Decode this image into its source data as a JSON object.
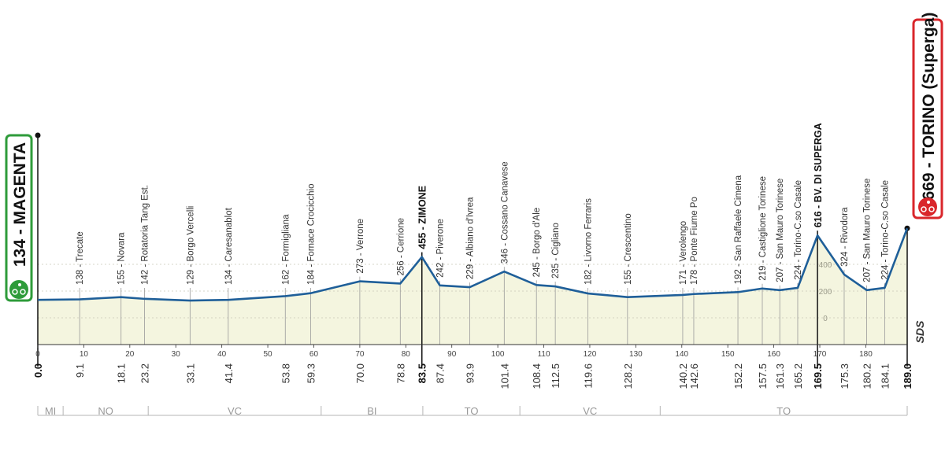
{
  "chart_data": {
    "type": "profile",
    "x": [
      0.0,
      9.1,
      18.1,
      23.2,
      33.1,
      41.4,
      53.8,
      59.3,
      70.0,
      78.8,
      83.5,
      87.4,
      93.9,
      101.4,
      108.4,
      112.5,
      119.6,
      128.2,
      140.2,
      142.6,
      152.2,
      157.5,
      161.3,
      165.2,
      169.5,
      175.3,
      180.2,
      184.1,
      189.0
    ],
    "x_labels": [
      "0.0",
      "9.1",
      "18.1",
      "23.2",
      "33.1",
      "41.4",
      "53.8",
      "59.3",
      "70.0",
      "78.8",
      "83.5",
      "87.4",
      "93.9",
      "101.4",
      "108.4",
      "112.5",
      "119.6",
      "128.2",
      "140.2",
      "142.6",
      "152.2",
      "157.5",
      "161.3",
      "165.2",
      "169.5",
      "175.3",
      "180.2",
      "184.1",
      "189.0"
    ],
    "values": [
      134,
      138,
      155,
      142,
      129,
      134,
      162,
      184,
      273,
      256,
      455,
      242,
      229,
      346,
      245,
      235,
      182,
      155,
      171,
      178,
      192,
      219,
      207,
      224,
      616,
      324,
      207,
      224,
      669
    ],
    "value_labels": [
      "134 - MAGENTA",
      "138 - Trecate",
      "155 - Novara",
      "142 - Rotatoria Tang Est.",
      "129 - Borgo Vercelli",
      "134 - Caresanablot",
      "162 - Formigliana",
      "184 - Fornace Crocicchio",
      "273 - Verrone",
      "256 - Cerrione",
      "455 - ZIMONE",
      "242 - Piverone",
      "229 - Albiano d'Ivrea",
      "346 - Cossano Canavese",
      "245 - Borgo d'Ale",
      "235 - Cigliano",
      "182 - Livorno Ferraris",
      "155 - Crescentino",
      "171 - Verolengo",
      "178 - Ponte Fiume Po",
      "192 - San Raffaele Cimena",
      "219 - Castiglione Torinese",
      "207 - San Mauro Torinese",
      "224 - Torino-C.so Casale",
      "616 - BV. DI SUPERGA",
      "324 - Rivodora",
      "207 - San Mauro Torinese",
      "224 - Torino-C.so Casale",
      "669 - TORINO (Superga)"
    ],
    "label_style": [
      "start",
      "normal",
      "normal",
      "normal",
      "normal",
      "normal",
      "normal",
      "normal",
      "normal",
      "normal",
      "bold",
      "normal",
      "normal",
      "normal",
      "normal",
      "normal",
      "normal",
      "normal",
      "normal",
      "normal",
      "normal",
      "normal",
      "normal",
      "normal",
      "bold",
      "normal",
      "normal",
      "normal",
      "finish"
    ],
    "start_color": "#2e9b3a",
    "finish_color": "#d9262b",
    "line_color": "#1f5f99",
    "fill_color": "#f4f5df",
    "xlim": [
      0,
      189
    ],
    "xticks": [
      0,
      10,
      20,
      30,
      40,
      50,
      60,
      70,
      80,
      90,
      100,
      110,
      120,
      130,
      140,
      150,
      160,
      170,
      180
    ],
    "ylim": [
      -200,
      800
    ],
    "yticks": [
      0,
      200,
      400
    ],
    "grid": true,
    "regions": [
      {
        "name": "MI",
        "from": 0,
        "to": 5.5
      },
      {
        "name": "NO",
        "from": 5.5,
        "to": 24
      },
      {
        "name": "VC",
        "from": 24,
        "to": 61.6
      },
      {
        "name": "BI",
        "from": 61.6,
        "to": 83.7
      },
      {
        "name": "TO",
        "from": 83.7,
        "to": 104.8
      },
      {
        "name": "VC",
        "from": 104.8,
        "to": 135.3
      },
      {
        "name": "TO",
        "from": 135.3,
        "to": 189
      }
    ],
    "logo": "SDS"
  }
}
